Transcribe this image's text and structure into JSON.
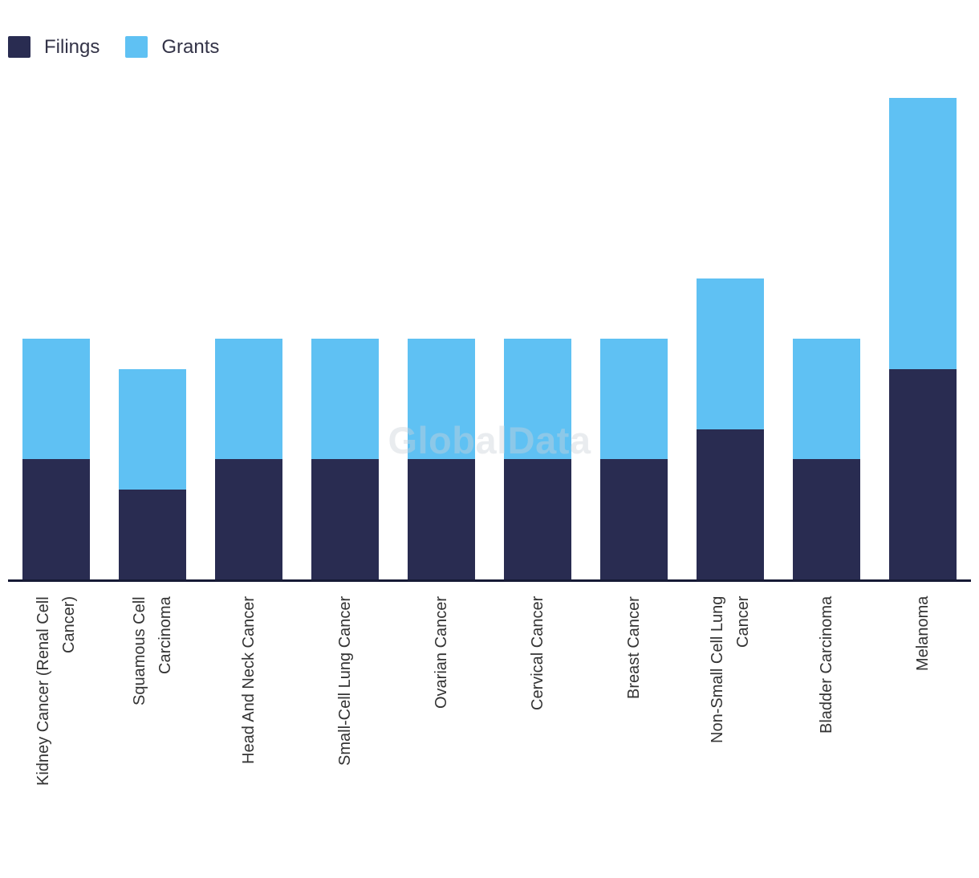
{
  "watermark": "GlobalData",
  "legend": {
    "items": [
      {
        "label": "Filings",
        "color": "#292c51"
      },
      {
        "label": "Grants",
        "color": "#5fc1f3"
      }
    ]
  },
  "chart_data": {
    "type": "bar",
    "stacked": true,
    "orientation": "vertical",
    "title": "",
    "xlabel": "",
    "ylabel": "",
    "categories": [
      "Kidney Cancer (Renal Cell\nCancer)",
      "Squamous Cell\nCarcinoma",
      "Head And Neck Cancer",
      "Small-Cell Lung Cancer",
      "Ovarian Cancer",
      "Cervical Cancer",
      "Breast Cancer",
      "Non-Small Cell Lung\nCancer",
      "Bladder Carcinoma",
      "Melanoma"
    ],
    "series": [
      {
        "name": "Filings",
        "color": "#292c51",
        "values": [
          4,
          3,
          4,
          4,
          4,
          4,
          4,
          5,
          4,
          7
        ]
      },
      {
        "name": "Grants",
        "color": "#5fc1f3",
        "values": [
          4,
          4,
          4,
          4,
          4,
          4,
          4,
          5,
          4,
          9
        ]
      }
    ],
    "ylim": [
      0,
      16
    ],
    "y_axis_visible": false,
    "gridlines": false,
    "legend_position": "top-left",
    "x_tick_rotation": -90
  },
  "colors": {
    "background": "#ffffff",
    "axis_line": "#161a35",
    "tick_label": "#333333",
    "legend_label": "#333347",
    "watermark_gray": "#cbd1da"
  }
}
